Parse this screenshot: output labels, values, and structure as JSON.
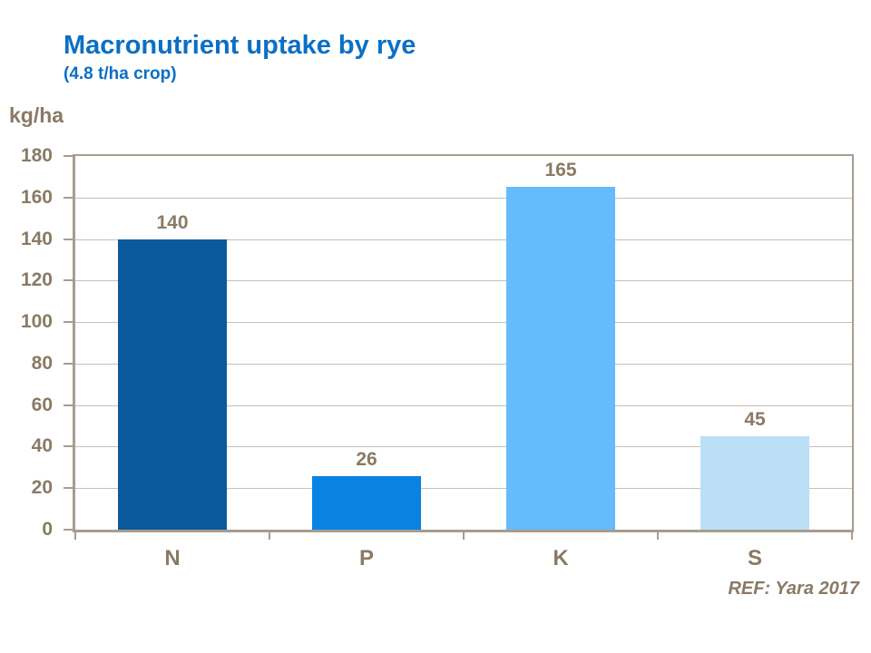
{
  "header": {
    "title": "Macronutrient uptake by rye",
    "subtitle": "(4.8 t/ha crop)"
  },
  "footer": {
    "ref": "REF: Yara 2017"
  },
  "colors": {
    "title_blue": "#0B6FC5",
    "text_brown": "#8A7A64",
    "axis_taupe": "#A79C8E",
    "gridline": "#C8C0B4",
    "bar_n": "#0B5A9D",
    "bar_p": "#0A82E2",
    "bar_k": "#66BBFC",
    "bar_s": "#BCDFF8"
  },
  "chart_data": {
    "type": "bar",
    "title": "Macronutrient uptake by rye",
    "subtitle": "(4.8 t/ha crop)",
    "ylabel": "kg/ha",
    "xlabel": "",
    "ylim": [
      0,
      180
    ],
    "ytick_step": 20,
    "yticks": [
      0,
      20,
      40,
      60,
      80,
      100,
      120,
      140,
      160,
      180
    ],
    "categories": [
      "N",
      "P",
      "K",
      "S"
    ],
    "values": [
      140,
      26,
      165,
      45
    ],
    "value_labels": [
      "140",
      "26",
      "165",
      "45"
    ],
    "bar_colors": [
      "#0B5A9D",
      "#0A82E2",
      "#66BBFC",
      "#BCDFF8"
    ],
    "grid": true,
    "legend": false,
    "annotation": "REF: Yara 2017"
  }
}
